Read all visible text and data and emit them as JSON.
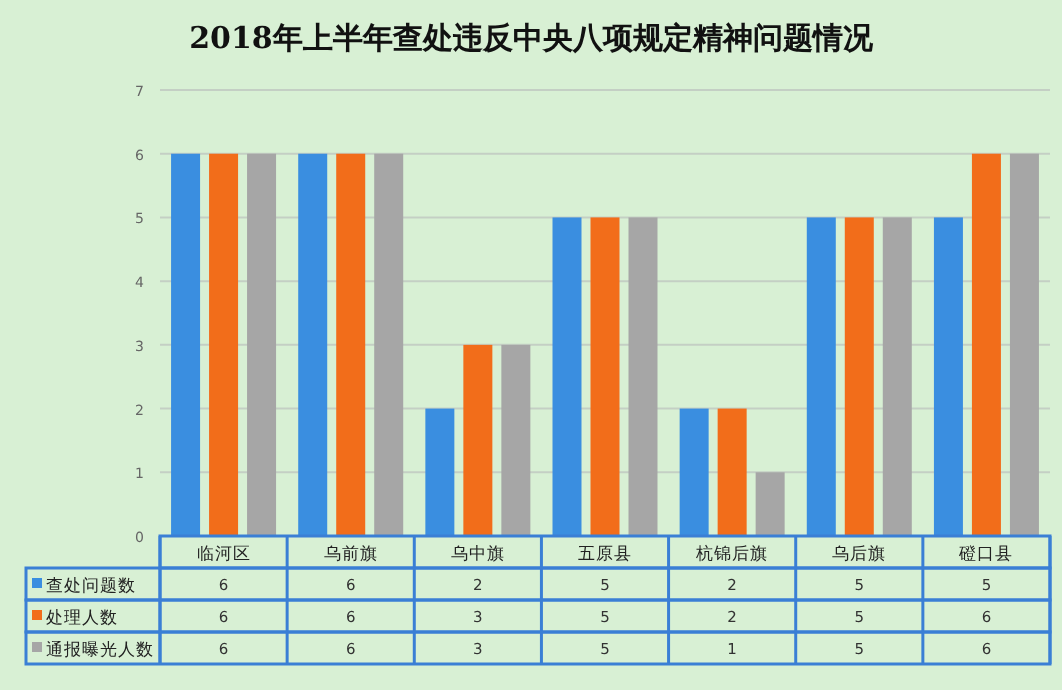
{
  "chart_data": {
    "type": "bar",
    "title": "2018年上半年查处违反中央八项规定精神问题情况",
    "categories": [
      "临河区",
      "乌前旗",
      "乌中旗",
      "五原县",
      "杭锦后旗",
      "乌后旗",
      "磴口县"
    ],
    "series": [
      {
        "name": "查处问题数",
        "color": "#3a8ee0",
        "values": [
          6,
          6,
          2,
          5,
          2,
          5,
          5
        ]
      },
      {
        "name": "处理人数",
        "color": "#f26d1a",
        "values": [
          6,
          6,
          3,
          5,
          2,
          5,
          6
        ]
      },
      {
        "name": "通报曝光人数",
        "color": "#a6a6a6",
        "values": [
          6,
          6,
          3,
          5,
          1,
          5,
          6
        ]
      }
    ],
    "ylim": [
      0,
      7
    ],
    "yticks": [
      0,
      1,
      2,
      3,
      4,
      5,
      6,
      7
    ],
    "grid": "y",
    "legend": "bottom",
    "data_labels": true
  }
}
